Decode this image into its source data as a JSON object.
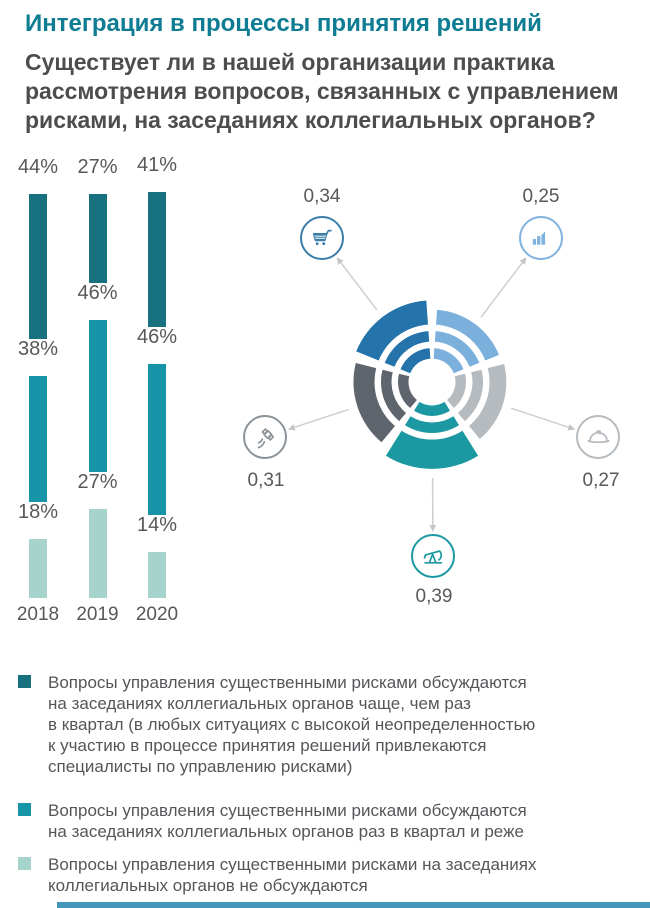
{
  "header": {
    "title": "Интеграция в процессы принятия решений",
    "question_lines": [
      "Существует ли в нашей организации практика",
      "рассмотрения вопросов, связанных с управлением",
      "рисками, на заседаниях коллегиальных органов?"
    ]
  },
  "colors": {
    "title": "#0e7c92",
    "question_text": "#4c4d4f",
    "label_text": "#57585a",
    "legend_text": "#55565a",
    "connector": "#cccfd1",
    "connector_arrow": "#c3c6c8",
    "footer_bar": "#4496b8"
  },
  "chart_data": [
    {
      "type": "bar",
      "categories": [
        "2018",
        "2019",
        "2020"
      ],
      "unit": "%",
      "series": [
        {
          "name": "Вопросы управления существенными рисками обсуждаются на заседаниях коллегиальных органов чаще, чем раз в квартал",
          "color": "#16707e",
          "values": [
            44,
            27,
            41
          ]
        },
        {
          "name": "Вопросы управления существенными рисками обсуждаются на заседаниях коллегиальных органов раз в квартал и реже",
          "color": "#1894a8",
          "values": [
            38,
            46,
            46
          ]
        },
        {
          "name": "Вопросы управления существенными рисками на заседаниях коллегиальных органов не обсуждаются",
          "color": "#a6d4cc",
          "values": [
            18,
            27,
            14
          ]
        }
      ]
    },
    {
      "type": "radial",
      "sectors": [
        {
          "icon": "shopping-cart-icon",
          "value_label": "0,34",
          "value": 0.34,
          "color": "#2474ab",
          "icon_color": "#3a7da9",
          "angle": 324
        },
        {
          "icon": "factory-icon",
          "value_label": "0,25",
          "value": 0.25,
          "color": "#7bb0dc",
          "icon_color": "#7fb2de",
          "angle": 36
        },
        {
          "icon": "hardhat-icon",
          "value_label": "0,27",
          "value": 0.27,
          "color": "#b6bbc0",
          "icon_color": "#b6bbc0",
          "angle": 108
        },
        {
          "icon": "oil-pump-icon",
          "value_label": "0,39",
          "value": 0.39,
          "color": "#1b98a1",
          "icon_color": "#1b98a1",
          "angle": 180
        },
        {
          "icon": "satellite-icon",
          "value_label": "0,31",
          "value": 0.31,
          "color": "#5e656d",
          "icon_color": "#8b9298",
          "angle": 252
        }
      ]
    }
  ],
  "legend": {
    "items": [
      {
        "color": "#16707e",
        "lines": [
          "Вопросы управления существенными рисками обсуждаются",
          "на заседаниях коллегиальных органов чаще, чем раз",
          "в квартал (в любых ситуациях с высокой неопределенностью",
          "к участию в процессе принятия решений привлекаются",
          "специалисты по управлению рисками)"
        ]
      },
      {
        "color": "#1894a8",
        "lines": [
          "Вопросы управления существенными рисками обсуждаются",
          "на заседаниях коллегиальных органов раз в квартал и реже"
        ]
      },
      {
        "color": "#a6d4cc",
        "lines": [
          "Вопросы управления существенными рисками на заседаниях",
          "коллегиальных органов не обсуждаются"
        ]
      }
    ]
  }
}
